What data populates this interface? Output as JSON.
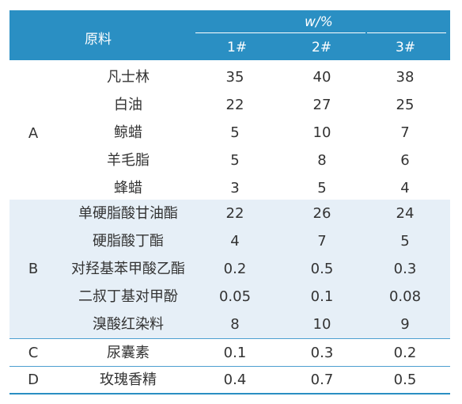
{
  "table": {
    "header": {
      "material": "原料",
      "mass_fraction": "w/%",
      "columns": [
        "1#",
        "2#",
        "3#"
      ]
    },
    "groups": [
      {
        "label": "A",
        "rows": [
          {
            "name": "凡士林",
            "v1": "35",
            "v2": "40",
            "v3": "38"
          },
          {
            "name": "白油",
            "v1": "22",
            "v2": "27",
            "v3": "25"
          },
          {
            "name": "鲸蜡",
            "v1": "5",
            "v2": "10",
            "v3": "7"
          },
          {
            "name": "羊毛脂",
            "v1": "5",
            "v2": "8",
            "v3": "6"
          },
          {
            "name": "蜂蜡",
            "v1": "3",
            "v2": "5",
            "v3": "4"
          }
        ]
      },
      {
        "label": "B",
        "rows": [
          {
            "name": "单硬脂酸甘油酯",
            "v1": "22",
            "v2": "26",
            "v3": "24"
          },
          {
            "name": "硬脂酸丁酯",
            "v1": "4",
            "v2": "7",
            "v3": "5"
          },
          {
            "name": "对羟基苯甲酸乙酯",
            "v1": "0.2",
            "v2": "0.5",
            "v3": "0.3"
          },
          {
            "name": "二叔丁基对甲酚",
            "v1": "0.05",
            "v2": "0.1",
            "v3": "0.08"
          },
          {
            "name": "溴酸红染料",
            "v1": "8",
            "v2": "10",
            "v3": "9"
          }
        ]
      },
      {
        "label": "C",
        "rows": [
          {
            "name": "尿囊素",
            "v1": "0.1",
            "v2": "0.3",
            "v3": "0.2"
          }
        ]
      },
      {
        "label": "D",
        "rows": [
          {
            "name": "玫瑰香精",
            "v1": "0.4",
            "v2": "0.7",
            "v3": "0.5"
          }
        ]
      }
    ]
  }
}
